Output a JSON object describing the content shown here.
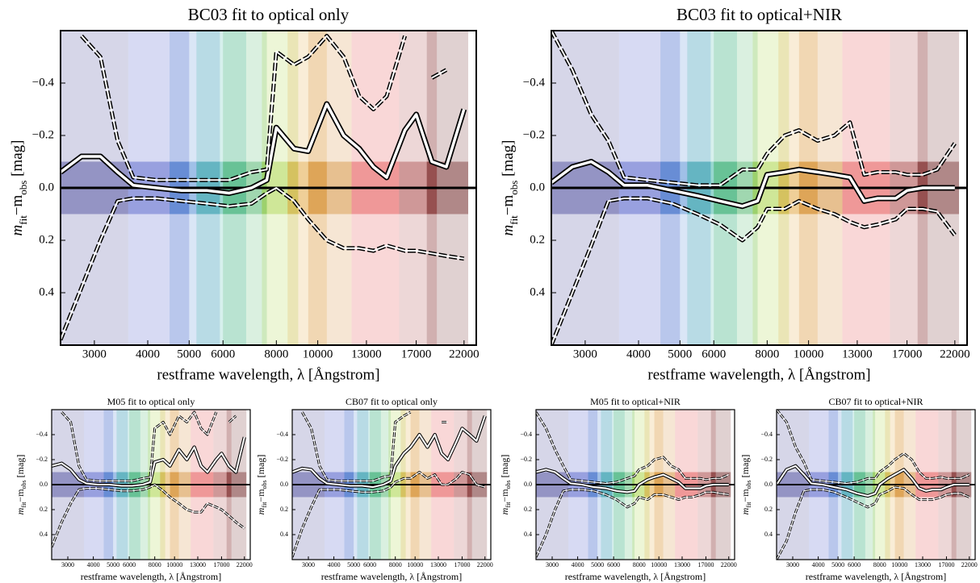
{
  "filter_bands": [
    {
      "xlim": [
        2500,
        3600
      ],
      "color": "#1a1a80"
    },
    {
      "xlim": [
        3600,
        5000
      ],
      "color": "#2233bb"
    },
    {
      "xlim": [
        4500,
        5900
      ],
      "color": "#3377cc"
    },
    {
      "xlim": [
        5200,
        6800
      ],
      "color": "#22aa99"
    },
    {
      "xlim": [
        6000,
        7600
      ],
      "color": "#33aa55"
    },
    {
      "xlim": [
        7400,
        9000
      ],
      "color": "#99cc22"
    },
    {
      "xlim": [
        8500,
        10500
      ],
      "color": "#dd9922"
    },
    {
      "xlim": [
        9500,
        12000
      ],
      "color": "#cc7711"
    },
    {
      "xlim": [
        12000,
        15500
      ],
      "color": "#dd2222"
    },
    {
      "xlim": [
        15500,
        19000
      ],
      "color": "#992222"
    },
    {
      "xlim": [
        18000,
        22500
      ],
      "color": "#550000"
    }
  ],
  "chart_data": [
    {
      "type": "line",
      "title": "BC03 fit to optical only",
      "xlabel": "restframe wavelength, λ [Ångstrom]",
      "ylabel": [
        "m",
        "fit",
        "−m",
        "obs",
        " [mag]"
      ],
      "log_x": true,
      "xlim": [
        2500,
        23500
      ],
      "ylim": [
        0.6,
        -0.6
      ],
      "hline": 0,
      "xticks": [
        3000,
        4000,
        5000,
        6000,
        8000,
        10000,
        13000,
        17000,
        22000
      ],
      "yticks": [
        {
          "value": -0.4,
          "label": "−0.4"
        },
        {
          "value": -0.2,
          "label": "−0.2"
        },
        {
          "value": 0,
          "label": "0.0"
        },
        0.2,
        0.4
      ],
      "x": [
        2500,
        2800,
        3100,
        3400,
        3700,
        4200,
        4800,
        5500,
        6200,
        7000,
        7600,
        8000,
        8800,
        9500,
        10500,
        11500,
        12500,
        13500,
        14500,
        16000,
        17000,
        18500,
        20000,
        22000
      ],
      "series": [
        {
          "color": "#ffffff",
          "style": "solid",
          "values": [
            -0.06,
            -0.12,
            -0.12,
            -0.06,
            -0.01,
            0.0,
            0.01,
            0.01,
            0.02,
            0.0,
            -0.03,
            -0.23,
            -0.15,
            -0.14,
            -0.32,
            -0.2,
            -0.15,
            -0.08,
            -0.04,
            -0.22,
            -0.28,
            -0.1,
            -0.08,
            -0.3
          ]
        },
        {
          "color": "#ffffff",
          "style": "dashed",
          "values": [
            null,
            -0.58,
            -0.5,
            -0.18,
            -0.04,
            -0.03,
            -0.03,
            -0.03,
            -0.03,
            -0.06,
            -0.07,
            -0.52,
            -0.47,
            -0.5,
            -0.58,
            -0.5,
            -0.35,
            -0.3,
            -0.35,
            -0.58,
            null,
            -0.42,
            -0.45,
            null
          ]
        },
        {
          "color": "#ffffff",
          "style": "dashed",
          "values": [
            0.58,
            0.38,
            0.2,
            0.05,
            0.04,
            0.04,
            0.05,
            0.06,
            0.07,
            0.06,
            0.02,
            0.0,
            0.05,
            0.12,
            0.2,
            0.23,
            0.23,
            0.24,
            0.22,
            0.24,
            0.24,
            0.25,
            0.26,
            0.27
          ]
        }
      ]
    },
    {
      "type": "line",
      "title": "BC03 fit to optical+NIR",
      "xlabel": "restframe wavelength, λ [Ångstrom]",
      "ylabel": [
        "m",
        "fit",
        "−m",
        "obs",
        " [mag]"
      ],
      "log_x": true,
      "xlim": [
        2500,
        23500
      ],
      "ylim": [
        0.6,
        -0.6
      ],
      "hline": 0,
      "xticks": [
        3000,
        4000,
        5000,
        6000,
        8000,
        10000,
        13000,
        17000,
        22000
      ],
      "yticks": [
        {
          "value": -0.4,
          "label": "−0.4"
        },
        {
          "value": -0.2,
          "label": "−0.2"
        },
        {
          "value": 0,
          "label": "0.0"
        },
        0.2,
        0.4
      ],
      "x": [
        2500,
        2800,
        3100,
        3400,
        3700,
        4200,
        4800,
        5500,
        6200,
        7000,
        7600,
        8000,
        8800,
        9500,
        10500,
        11500,
        12500,
        13500,
        14500,
        16000,
        17000,
        18500,
        20000,
        22000
      ],
      "series": [
        {
          "color": "#ffffff",
          "style": "solid",
          "values": [
            -0.02,
            -0.08,
            -0.1,
            -0.06,
            -0.01,
            -0.01,
            0.01,
            0.03,
            0.05,
            0.07,
            0.05,
            -0.05,
            -0.06,
            -0.07,
            -0.06,
            -0.05,
            -0.04,
            0.05,
            0.04,
            0.04,
            0.01,
            0.0,
            0.0,
            0.0
          ]
        },
        {
          "color": "#ffffff",
          "style": "dashed",
          "values": [
            -0.6,
            -0.45,
            -0.28,
            -0.18,
            -0.04,
            -0.03,
            -0.02,
            -0.01,
            -0.01,
            -0.07,
            -0.07,
            -0.13,
            -0.2,
            -0.22,
            -0.18,
            -0.2,
            -0.25,
            -0.05,
            -0.06,
            -0.06,
            -0.05,
            -0.05,
            -0.07,
            -0.17
          ]
        },
        {
          "color": "#ffffff",
          "style": "dashed",
          "values": [
            0.6,
            0.4,
            0.22,
            0.05,
            0.04,
            0.04,
            0.06,
            0.1,
            0.14,
            0.2,
            0.15,
            0.08,
            0.08,
            0.05,
            0.08,
            0.1,
            0.13,
            0.15,
            0.14,
            0.12,
            0.08,
            0.08,
            0.09,
            0.18
          ]
        }
      ]
    },
    {
      "type": "line",
      "title": "M05 fit to optical only",
      "xlabel": "restframe wavelength, λ [Ångstrom]",
      "ylabel": [
        "m",
        "fit",
        "−m",
        "obs",
        " [mag]"
      ],
      "log_x": true,
      "xlim": [
        2500,
        23500
      ],
      "ylim": [
        0.6,
        -0.6
      ],
      "hline": 0,
      "xticks": [
        3000,
        4000,
        5000,
        6000,
        8000,
        10000,
        13000,
        17000,
        22000
      ],
      "yticks": [
        {
          "value": -0.4,
          "label": "−0.4"
        },
        {
          "value": -0.2,
          "label": "−0.2"
        },
        {
          "value": 0,
          "label": "0.0"
        },
        0.2,
        0.4
      ],
      "x": [
        2500,
        2800,
        3100,
        3400,
        3700,
        4200,
        4800,
        5500,
        6200,
        7000,
        7600,
        8000,
        8800,
        9500,
        10500,
        11500,
        12500,
        13500,
        14500,
        16000,
        17000,
        18500,
        20000,
        22000
      ],
      "series": [
        {
          "color": "#ffffff",
          "style": "solid",
          "values": [
            -0.15,
            -0.17,
            -0.12,
            -0.04,
            -0.01,
            0.0,
            0.0,
            0.01,
            0.01,
            0.0,
            -0.02,
            -0.18,
            -0.2,
            -0.15,
            -0.28,
            -0.2,
            -0.3,
            -0.15,
            -0.1,
            -0.2,
            -0.25,
            -0.15,
            -0.1,
            -0.38
          ]
        },
        {
          "color": "#ffffff",
          "style": "dashed",
          "values": [
            null,
            -0.58,
            -0.5,
            -0.15,
            -0.04,
            -0.03,
            -0.03,
            -0.03,
            -0.03,
            -0.05,
            -0.06,
            -0.45,
            -0.5,
            -0.4,
            -0.55,
            -0.5,
            -0.58,
            -0.45,
            -0.4,
            -0.58,
            null,
            -0.5,
            -0.55,
            null
          ]
        },
        {
          "color": "#ffffff",
          "style": "dashed",
          "values": [
            0.5,
            0.3,
            0.15,
            0.04,
            0.03,
            0.03,
            0.04,
            0.05,
            0.05,
            0.04,
            0.02,
            0.0,
            0.05,
            0.1,
            0.15,
            0.2,
            0.22,
            0.22,
            0.15,
            0.18,
            0.2,
            0.25,
            0.3,
            0.35
          ]
        }
      ]
    },
    {
      "type": "line",
      "title": "CB07 fit to optical only",
      "xlabel": "restframe wavelength, λ [Ångstrom]",
      "ylabel": [
        "m",
        "fit",
        "−m",
        "obs",
        " [mag]"
      ],
      "log_x": true,
      "xlim": [
        2500,
        23500
      ],
      "ylim": [
        0.6,
        -0.6
      ],
      "hline": 0,
      "xticks": [
        3000,
        4000,
        5000,
        6000,
        8000,
        10000,
        13000,
        17000,
        22000
      ],
      "yticks": [
        {
          "value": -0.4,
          "label": "−0.4"
        },
        {
          "value": -0.2,
          "label": "−0.2"
        },
        {
          "value": 0,
          "label": "0.0"
        },
        0.2,
        0.4
      ],
      "x": [
        2500,
        2800,
        3100,
        3400,
        3700,
        4200,
        4800,
        5500,
        6200,
        7000,
        7600,
        8000,
        8800,
        9500,
        10500,
        11500,
        12500,
        13500,
        14500,
        16000,
        17000,
        18500,
        20000,
        22000
      ],
      "series": [
        {
          "color": "#ffffff",
          "style": "solid",
          "values": [
            -0.1,
            -0.13,
            -0.12,
            -0.05,
            -0.01,
            0.0,
            0.01,
            0.01,
            0.02,
            0.0,
            -0.03,
            -0.15,
            -0.25,
            -0.3,
            -0.4,
            -0.3,
            -0.4,
            -0.25,
            -0.2,
            -0.35,
            -0.45,
            -0.4,
            -0.35,
            -0.55
          ]
        },
        {
          "color": "#ffffff",
          "style": "dashed",
          "values": [
            null,
            -0.58,
            -0.45,
            -0.15,
            -0.04,
            -0.03,
            -0.03,
            -0.03,
            -0.03,
            -0.06,
            -0.07,
            -0.5,
            -0.55,
            -0.58,
            null,
            null,
            null,
            -0.5,
            -0.5,
            null,
            null,
            null,
            null,
            null
          ]
        },
        {
          "color": "#ffffff",
          "style": "dashed",
          "values": [
            0.58,
            0.35,
            0.18,
            0.04,
            0.04,
            0.04,
            0.05,
            0.06,
            0.06,
            0.05,
            0.02,
            -0.02,
            -0.05,
            -0.05,
            -0.1,
            -0.05,
            -0.08,
            0.0,
            0.0,
            -0.05,
            -0.1,
            -0.08,
            0.0,
            0.02
          ]
        }
      ]
    },
    {
      "type": "line",
      "title": "M05 fit to optical+NIR",
      "xlabel": "restframe wavelength, λ [Ångstrom]",
      "ylabel": [
        "m",
        "fit",
        "−m",
        "obs",
        " [mag]"
      ],
      "log_x": true,
      "xlim": [
        2500,
        23500
      ],
      "ylim": [
        0.6,
        -0.6
      ],
      "hline": 0,
      "xticks": [
        3000,
        4000,
        5000,
        6000,
        8000,
        10000,
        13000,
        17000,
        22000
      ],
      "yticks": [
        {
          "value": -0.4,
          "label": "−0.4"
        },
        {
          "value": -0.2,
          "label": "−0.2"
        },
        {
          "value": 0,
          "label": "0.0"
        },
        0.2,
        0.4
      ],
      "x": [
        2500,
        2800,
        3100,
        3400,
        3700,
        4200,
        4800,
        5500,
        6200,
        7000,
        7600,
        8000,
        8800,
        9500,
        10500,
        11500,
        12500,
        13500,
        14500,
        16000,
        17000,
        18500,
        20000,
        22000
      ],
      "series": [
        {
          "color": "#ffffff",
          "style": "solid",
          "values": [
            -0.1,
            -0.12,
            -0.1,
            -0.05,
            -0.01,
            0.0,
            0.02,
            0.03,
            0.05,
            0.06,
            0.05,
            0.0,
            -0.04,
            -0.06,
            -0.08,
            -0.05,
            -0.02,
            0.03,
            0.03,
            0.03,
            0.01,
            0.0,
            0.0,
            0.0
          ]
        },
        {
          "color": "#ffffff",
          "style": "dashed",
          "values": [
            -0.58,
            -0.45,
            -0.28,
            -0.15,
            -0.04,
            -0.03,
            -0.02,
            -0.01,
            -0.02,
            -0.05,
            -0.07,
            -0.12,
            -0.15,
            -0.2,
            -0.22,
            -0.15,
            -0.12,
            -0.05,
            -0.05,
            -0.05,
            -0.04,
            -0.05,
            -0.05,
            -0.08
          ]
        },
        {
          "color": "#ffffff",
          "style": "dashed",
          "values": [
            0.58,
            0.4,
            0.2,
            0.05,
            0.04,
            0.04,
            0.05,
            0.08,
            0.12,
            0.18,
            0.15,
            0.1,
            0.12,
            0.08,
            0.08,
            0.1,
            0.12,
            0.1,
            0.1,
            0.08,
            0.06,
            0.06,
            0.07,
            0.08
          ]
        }
      ]
    },
    {
      "type": "line",
      "title": "CB07 fit to optical+NIR",
      "xlabel": "restframe wavelength, λ [Ångstrom]",
      "ylabel": [
        "m",
        "fit",
        "−m",
        "obs",
        " [mag]"
      ],
      "log_x": true,
      "xlim": [
        2500,
        23500
      ],
      "ylim": [
        0.6,
        -0.6
      ],
      "hline": 0,
      "xticks": [
        3000,
        4000,
        5000,
        6000,
        8000,
        10000,
        13000,
        17000,
        22000
      ],
      "yticks": [
        {
          "value": -0.4,
          "label": "−0.4"
        },
        {
          "value": -0.2,
          "label": "−0.2"
        },
        {
          "value": 0,
          "label": "0.0"
        },
        0.2,
        0.4
      ],
      "x": [
        2500,
        2800,
        3100,
        3400,
        3700,
        4200,
        4800,
        5500,
        6200,
        7000,
        7600,
        8000,
        8800,
        9500,
        10500,
        11500,
        12500,
        13500,
        14500,
        16000,
        17000,
        18500,
        20000,
        22000
      ],
      "series": [
        {
          "color": "#ffffff",
          "style": "solid",
          "values": [
            0.0,
            -0.12,
            -0.15,
            -0.08,
            -0.01,
            0.0,
            0.02,
            0.04,
            0.07,
            0.09,
            0.07,
            0.0,
            -0.05,
            -0.08,
            -0.12,
            -0.05,
            0.03,
            0.05,
            0.04,
            0.04,
            0.02,
            0.0,
            0.0,
            0.0
          ]
        },
        {
          "color": "#ffffff",
          "style": "dashed",
          "values": [
            -0.6,
            -0.5,
            -0.3,
            -0.18,
            -0.04,
            -0.03,
            -0.02,
            -0.01,
            -0.02,
            -0.05,
            -0.05,
            -0.1,
            -0.15,
            -0.2,
            -0.25,
            -0.2,
            -0.1,
            -0.05,
            -0.05,
            -0.06,
            -0.05,
            -0.05,
            -0.05,
            -0.08
          ]
        },
        {
          "color": "#ffffff",
          "style": "dashed",
          "values": [
            0.6,
            0.45,
            0.22,
            0.05,
            0.04,
            0.04,
            0.06,
            0.1,
            0.14,
            0.18,
            0.15,
            0.08,
            0.05,
            0.02,
            0.03,
            0.08,
            0.12,
            0.12,
            0.12,
            0.1,
            0.08,
            0.07,
            0.07,
            0.1
          ]
        }
      ]
    }
  ]
}
